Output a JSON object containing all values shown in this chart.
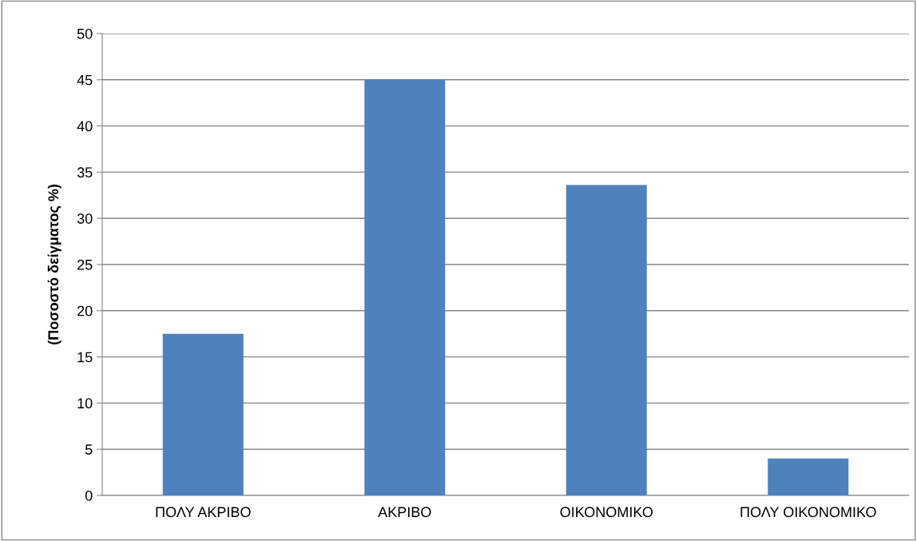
{
  "chart_data": {
    "type": "bar",
    "ylabel": "(Ποσοστό δείγματος %)",
    "categories": [
      "ΠΟΛΥ ΑΚΡΙΒΟ",
      "ΑΚΡΙΒΟ",
      "ΟΙΚΟΝΟΜΙΚΟ",
      "ΠΟΛΥ ΟΙΚΟΝΟΜΙΚΟ"
    ],
    "values": [
      17.5,
      45,
      33.6,
      4
    ],
    "color": "#4f81bd",
    "ylim": [
      0,
      50
    ],
    "yticks": [
      0,
      5,
      10,
      15,
      20,
      25,
      30,
      35,
      40,
      45,
      50
    ],
    "grid": "y",
    "legend": false
  }
}
